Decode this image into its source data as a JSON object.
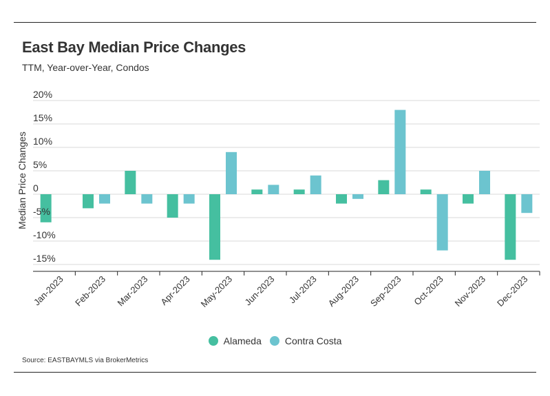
{
  "header": {
    "title": "East Bay Median Price Changes",
    "subtitle": "TTM, Year-over-Year, Condos"
  },
  "footer": {
    "source": "Source:  EASTBAYMLS via BrokerMetrics"
  },
  "colors": {
    "alameda": "#45bfa0",
    "contra_costa": "#6cc4cf",
    "gridline": "#d9d9d9",
    "axis": "#222222",
    "text": "#333333"
  },
  "chart_data": {
    "type": "bar",
    "title": "East Bay Median Price Changes",
    "subtitle": "TTM, Year-over-Year, Condos",
    "xlabel": "",
    "ylabel": "Median Price Changes",
    "ylim": [
      -15,
      20
    ],
    "yticks": [
      20,
      15,
      10,
      5,
      0,
      -5,
      -10,
      -15
    ],
    "ytick_labels": [
      "20%",
      "15%",
      "10%",
      "5%",
      "0",
      "-5%",
      "-10%",
      "-15%"
    ],
    "grid": true,
    "legend_position": "bottom-center",
    "categories": [
      "Jan-2023",
      "Feb-2023",
      "Mar-2023",
      "Apr-2023",
      "May-2023",
      "Jun-2023",
      "Jul-2023",
      "Aug-2023",
      "Sep-2023",
      "Oct-2023",
      "Nov-2023",
      "Dec-2023"
    ],
    "series": [
      {
        "name": "Alameda",
        "color": "#45bfa0",
        "values": [
          -6,
          -3,
          5,
          -5,
          -14,
          1,
          1,
          -2,
          3,
          1,
          -2,
          -14
        ]
      },
      {
        "name": "Contra Costa",
        "color": "#6cc4cf",
        "values": [
          0,
          -2,
          -2,
          -2,
          9,
          2,
          4,
          -1,
          18,
          -12,
          5,
          -4
        ]
      }
    ]
  }
}
